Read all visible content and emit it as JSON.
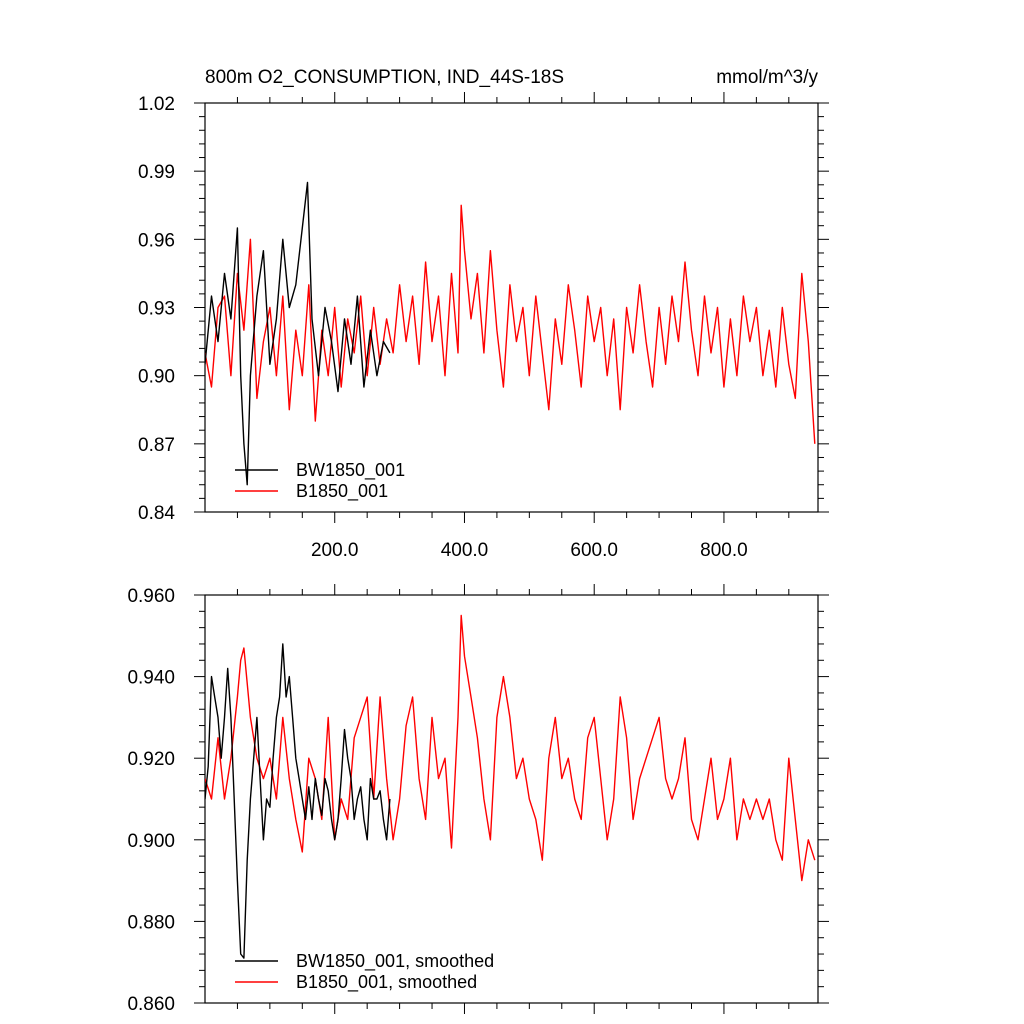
{
  "chart_data": [
    {
      "type": "line",
      "title": "800m O2_CONSUMPTION, IND_44S-18S",
      "units": "mmol/m^3/y",
      "xlim": [
        0,
        945
      ],
      "ylim": [
        0.84,
        1.02
      ],
      "yticks": [
        0.84,
        0.87,
        0.9,
        0.93,
        0.96,
        0.99,
        1.02
      ],
      "ytick_labels": [
        "0.84",
        "0.87",
        "0.90",
        "0.93",
        "0.96",
        "0.99",
        "1.02"
      ],
      "xticks": [
        200,
        400,
        600,
        800
      ],
      "xtick_labels": [
        "200.0",
        "400.0",
        "600.0",
        "800.0"
      ],
      "legend_position": "bottom-left",
      "series": [
        {
          "name": "BW1850_001",
          "color": "#000000",
          "x": [
            0,
            10,
            20,
            30,
            40,
            50,
            55,
            60,
            65,
            70,
            80,
            90,
            100,
            110,
            120,
            130,
            140,
            150,
            158,
            165,
            175,
            185,
            195,
            205,
            215,
            225,
            235,
            245,
            255,
            265,
            275,
            285
          ],
          "values": [
            0.905,
            0.935,
            0.915,
            0.945,
            0.925,
            0.965,
            0.9,
            0.87,
            0.852,
            0.9,
            0.935,
            0.955,
            0.905,
            0.925,
            0.96,
            0.93,
            0.94,
            0.965,
            0.985,
            0.925,
            0.9,
            0.93,
            0.915,
            0.893,
            0.925,
            0.905,
            0.935,
            0.895,
            0.92,
            0.9,
            0.915,
            0.91
          ]
        },
        {
          "name": "B1850_001",
          "color": "#ff0000",
          "x": [
            0,
            10,
            20,
            30,
            40,
            50,
            60,
            70,
            80,
            90,
            100,
            110,
            120,
            130,
            140,
            150,
            160,
            170,
            180,
            190,
            200,
            210,
            220,
            230,
            240,
            250,
            260,
            270,
            280,
            290,
            300,
            310,
            320,
            330,
            340,
            350,
            360,
            370,
            380,
            390,
            395,
            400,
            410,
            420,
            430,
            440,
            450,
            460,
            470,
            480,
            490,
            500,
            510,
            520,
            530,
            540,
            550,
            560,
            570,
            580,
            590,
            600,
            610,
            620,
            630,
            640,
            650,
            660,
            670,
            680,
            690,
            700,
            710,
            720,
            730,
            740,
            750,
            760,
            770,
            780,
            790,
            800,
            810,
            820,
            830,
            840,
            850,
            860,
            870,
            880,
            890,
            900,
            910,
            920,
            930,
            940
          ],
          "values": [
            0.91,
            0.895,
            0.93,
            0.935,
            0.9,
            0.945,
            0.92,
            0.96,
            0.89,
            0.915,
            0.93,
            0.9,
            0.935,
            0.885,
            0.92,
            0.9,
            0.94,
            0.88,
            0.92,
            0.9,
            0.93,
            0.895,
            0.925,
            0.91,
            0.935,
            0.9,
            0.93,
            0.905,
            0.925,
            0.91,
            0.94,
            0.915,
            0.935,
            0.905,
            0.95,
            0.915,
            0.935,
            0.9,
            0.945,
            0.91,
            0.975,
            0.955,
            0.925,
            0.945,
            0.91,
            0.955,
            0.92,
            0.895,
            0.94,
            0.915,
            0.93,
            0.9,
            0.935,
            0.91,
            0.885,
            0.925,
            0.905,
            0.94,
            0.92,
            0.895,
            0.935,
            0.915,
            0.93,
            0.9,
            0.925,
            0.885,
            0.93,
            0.91,
            0.94,
            0.915,
            0.895,
            0.93,
            0.905,
            0.935,
            0.915,
            0.95,
            0.92,
            0.9,
            0.935,
            0.91,
            0.93,
            0.895,
            0.925,
            0.9,
            0.935,
            0.915,
            0.93,
            0.9,
            0.92,
            0.895,
            0.93,
            0.905,
            0.89,
            0.945,
            0.915,
            0.87
          ]
        }
      ]
    },
    {
      "type": "line",
      "xlim": [
        0,
        945
      ],
      "ylim": [
        0.86,
        0.96
      ],
      "yticks": [
        0.86,
        0.88,
        0.9,
        0.92,
        0.94,
        0.96
      ],
      "ytick_labels": [
        "0.860",
        "0.880",
        "0.900",
        "0.920",
        "0.940",
        "0.960"
      ],
      "xticks": [
        200,
        400,
        600,
        800
      ],
      "legend_position": "bottom-left",
      "series": [
        {
          "name": "BW1850_001, smoothed",
          "color": "#000000",
          "x": [
            0,
            5,
            10,
            15,
            20,
            25,
            30,
            35,
            40,
            45,
            50,
            55,
            60,
            65,
            70,
            75,
            80,
            85,
            90,
            95,
            100,
            105,
            110,
            115,
            120,
            125,
            130,
            135,
            140,
            145,
            150,
            155,
            160,
            165,
            170,
            175,
            180,
            185,
            190,
            195,
            200,
            205,
            210,
            215,
            220,
            225,
            230,
            235,
            240,
            245,
            250,
            255,
            260,
            265,
            270,
            275,
            280,
            285
          ],
          "values": [
            0.91,
            0.918,
            0.94,
            0.935,
            0.93,
            0.92,
            0.93,
            0.942,
            0.93,
            0.91,
            0.89,
            0.872,
            0.871,
            0.895,
            0.91,
            0.92,
            0.93,
            0.915,
            0.9,
            0.91,
            0.908,
            0.92,
            0.93,
            0.935,
            0.948,
            0.935,
            0.94,
            0.93,
            0.92,
            0.915,
            0.91,
            0.905,
            0.913,
            0.905,
            0.915,
            0.91,
            0.906,
            0.915,
            0.912,
            0.905,
            0.9,
            0.905,
            0.915,
            0.927,
            0.92,
            0.915,
            0.905,
            0.91,
            0.913,
            0.905,
            0.9,
            0.915,
            0.91,
            0.91,
            0.912,
            0.905,
            0.9,
            0.91
          ]
        },
        {
          "name": "B1850_001, smoothed",
          "color": "#ff0000",
          "x": [
            0,
            10,
            20,
            30,
            40,
            50,
            55,
            60,
            70,
            80,
            90,
            100,
            110,
            120,
            130,
            140,
            150,
            160,
            170,
            180,
            190,
            200,
            210,
            220,
            230,
            240,
            250,
            260,
            270,
            280,
            290,
            300,
            310,
            320,
            330,
            340,
            350,
            360,
            370,
            380,
            390,
            395,
            400,
            410,
            420,
            430,
            440,
            450,
            460,
            470,
            480,
            490,
            500,
            510,
            520,
            530,
            540,
            550,
            560,
            570,
            580,
            590,
            600,
            610,
            620,
            630,
            640,
            650,
            660,
            670,
            680,
            690,
            700,
            710,
            720,
            730,
            740,
            750,
            760,
            770,
            780,
            790,
            800,
            810,
            820,
            830,
            840,
            850,
            860,
            870,
            880,
            890,
            900,
            910,
            920,
            930,
            940
          ],
          "values": [
            0.915,
            0.91,
            0.925,
            0.91,
            0.92,
            0.935,
            0.944,
            0.947,
            0.93,
            0.92,
            0.915,
            0.92,
            0.91,
            0.93,
            0.915,
            0.905,
            0.897,
            0.92,
            0.915,
            0.905,
            0.93,
            0.9,
            0.91,
            0.905,
            0.925,
            0.93,
            0.935,
            0.91,
            0.935,
            0.915,
            0.9,
            0.91,
            0.928,
            0.935,
            0.915,
            0.905,
            0.93,
            0.915,
            0.92,
            0.898,
            0.93,
            0.955,
            0.945,
            0.935,
            0.925,
            0.91,
            0.9,
            0.93,
            0.94,
            0.93,
            0.915,
            0.92,
            0.91,
            0.905,
            0.895,
            0.92,
            0.93,
            0.915,
            0.92,
            0.91,
            0.905,
            0.925,
            0.93,
            0.915,
            0.9,
            0.91,
            0.935,
            0.925,
            0.905,
            0.915,
            0.92,
            0.925,
            0.93,
            0.915,
            0.91,
            0.915,
            0.925,
            0.905,
            0.9,
            0.91,
            0.92,
            0.905,
            0.91,
            0.92,
            0.9,
            0.91,
            0.905,
            0.91,
            0.905,
            0.91,
            0.9,
            0.895,
            0.92,
            0.905,
            0.89,
            0.9,
            0.895
          ]
        }
      ]
    }
  ]
}
